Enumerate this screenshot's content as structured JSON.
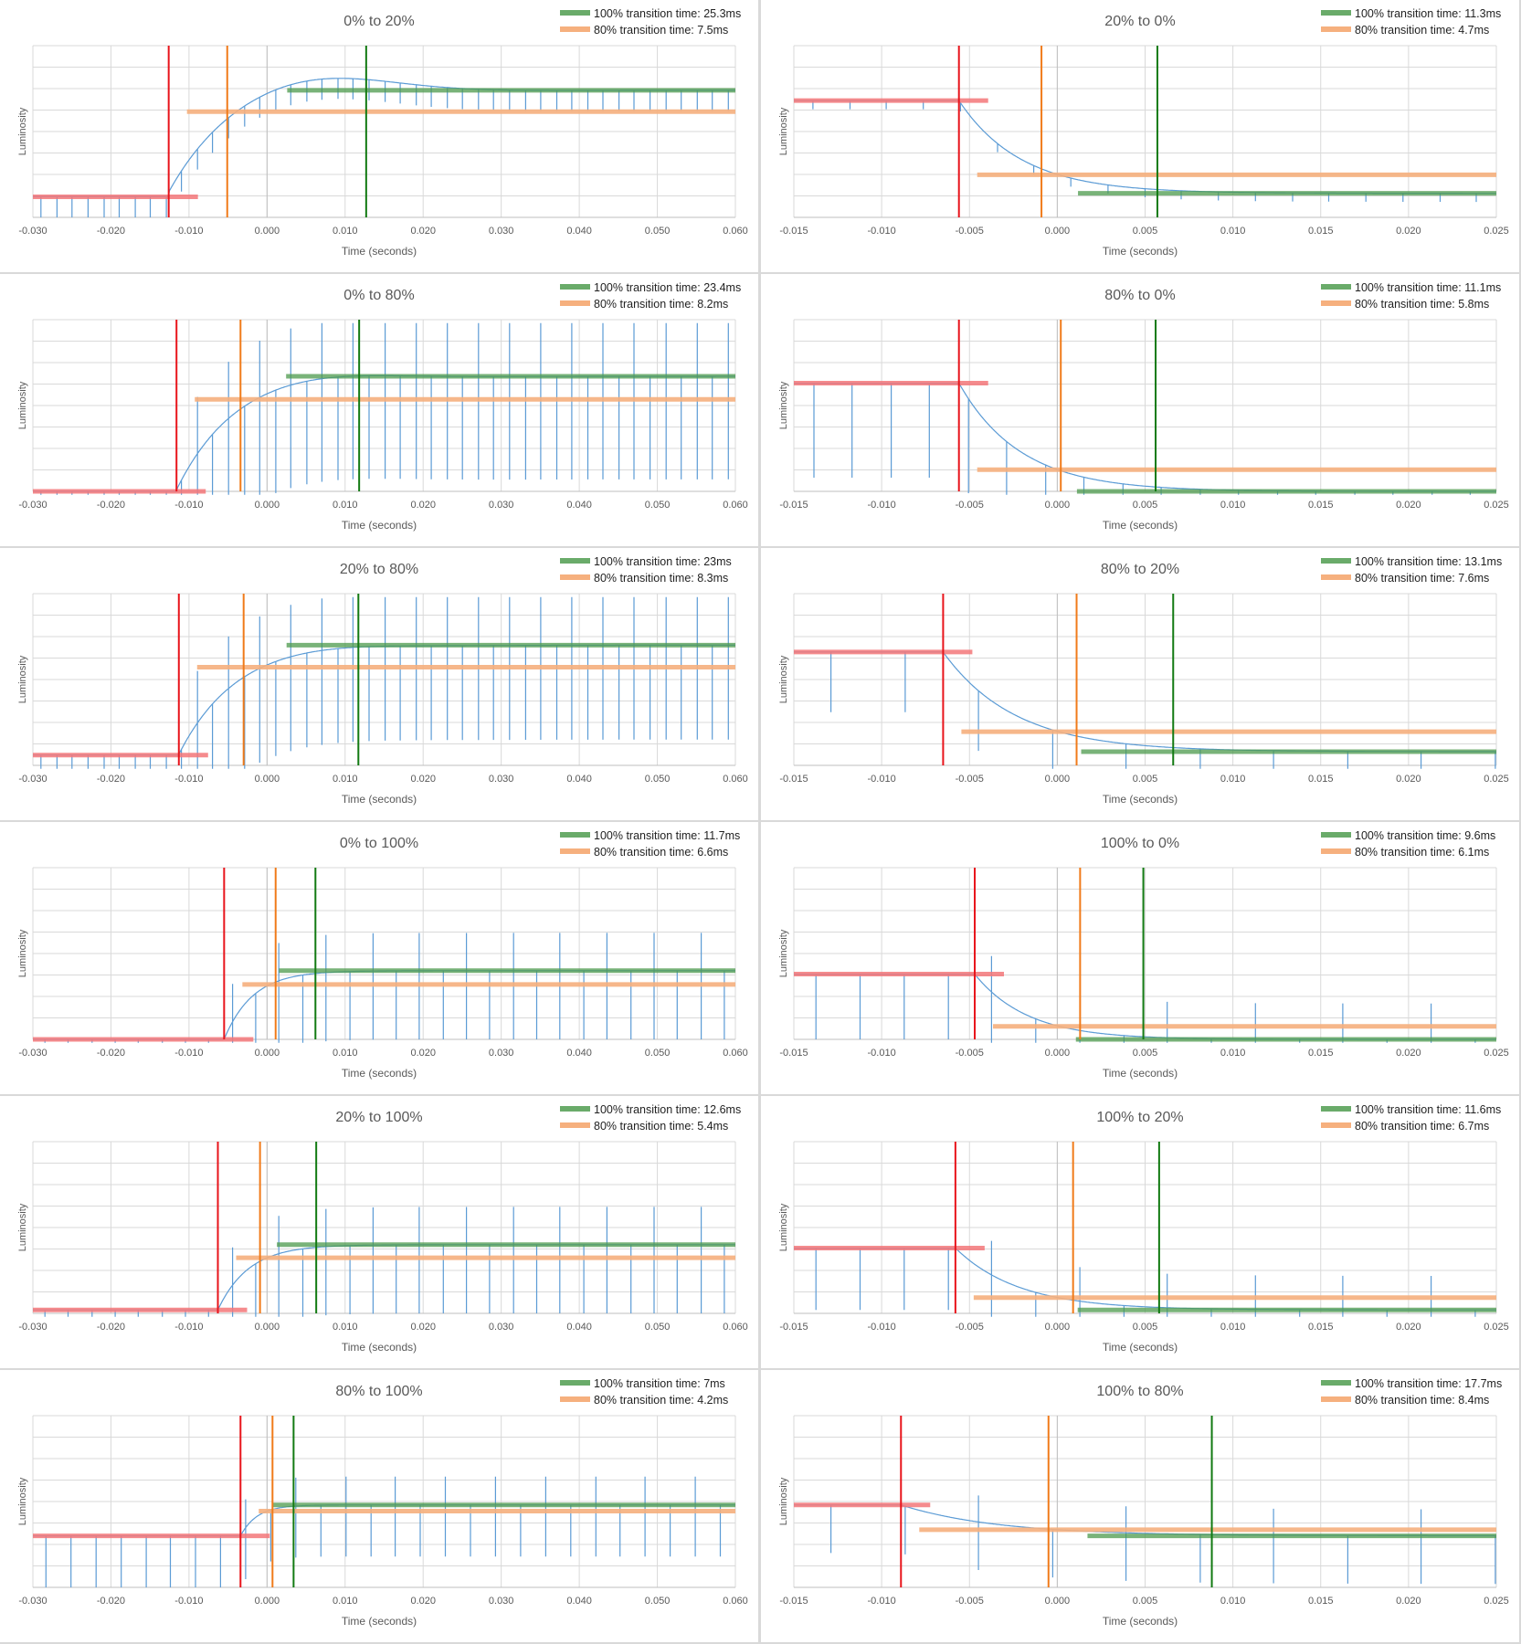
{
  "chart_data": [
    {
      "type": "line",
      "title": "0% to 20%",
      "xlabel": "Time (seconds)",
      "ylabel": "Luminosity",
      "xlim": [
        -0.03,
        0.06
      ],
      "xticks": [
        "-0.030",
        "-0.020",
        "-0.010",
        "0.000",
        "0.010",
        "0.020",
        "0.030",
        "0.040",
        "0.050",
        "0.060"
      ],
      "legend": [
        "100% transition time: 25.3ms",
        "80% transition time: 7.5ms"
      ],
      "direction": "rise",
      "t_start": -0.0126,
      "t_80": -0.0051,
      "t_100": 0.0127,
      "y0": 0.12,
      "y1": 0.74,
      "overshoot": 0.12,
      "spike_depth": 0.12,
      "spike_spacing": 0.002,
      "upspike": false
    },
    {
      "type": "line",
      "title": "20% to 0%",
      "xlabel": "Time (seconds)",
      "ylabel": "Luminosity",
      "xlim": [
        -0.015,
        0.025
      ],
      "xticks": [
        "-0.015",
        "-0.010",
        "-0.005",
        "0.000",
        "0.005",
        "0.010",
        "0.015",
        "0.020",
        "0.025"
      ],
      "legend": [
        "100% transition time: 11.3ms",
        "80% transition time: 4.7ms"
      ],
      "direction": "fall",
      "t_start": -0.0056,
      "t_80": -0.0009,
      "t_100": 0.0057,
      "y0": 0.68,
      "y1": 0.14,
      "overshoot": 0,
      "spike_depth": 0.05,
      "spike_spacing": 0.0021,
      "upspike": false
    },
    {
      "type": "line",
      "title": "0% to 80%",
      "xlabel": "Time (seconds)",
      "ylabel": "Luminosity",
      "xlim": [
        -0.03,
        0.06
      ],
      "xticks": [
        "-0.030",
        "-0.020",
        "-0.010",
        "0.000",
        "0.010",
        "0.020",
        "0.030",
        "0.040",
        "0.050",
        "0.060"
      ],
      "legend": [
        "100% transition time: 23.4ms",
        "80% transition time: 8.2ms"
      ],
      "direction": "rise",
      "t_start": -0.0116,
      "t_80": -0.0034,
      "t_100": 0.0118,
      "y0": 0.0,
      "y1": 0.67,
      "overshoot": 0.04,
      "spike_depth": 0.6,
      "spike_spacing": 0.002,
      "upspike": true
    },
    {
      "type": "line",
      "title": "80% to 0%",
      "xlabel": "Time (seconds)",
      "ylabel": "Luminosity",
      "xlim": [
        -0.015,
        0.025
      ],
      "xticks": [
        "-0.015",
        "-0.010",
        "-0.005",
        "0.000",
        "0.005",
        "0.010",
        "0.015",
        "0.020",
        "0.025"
      ],
      "legend": [
        "100% transition time: 11.1ms",
        "80% transition time: 5.8ms"
      ],
      "direction": "fall",
      "t_start": -0.0056,
      "t_80": 0.0002,
      "t_100": 0.0056,
      "y0": 0.63,
      "y1": 0.0,
      "overshoot": 0,
      "spike_depth": 0.55,
      "spike_spacing": 0.0022,
      "upspike": false
    },
    {
      "type": "line",
      "title": "20% to 80%",
      "xlabel": "Time (seconds)",
      "ylabel": "Luminosity",
      "xlim": [
        -0.03,
        0.06
      ],
      "xticks": [
        "-0.030",
        "-0.020",
        "-0.010",
        "0.000",
        "0.010",
        "0.020",
        "0.030",
        "0.040",
        "0.050",
        "0.060"
      ],
      "legend": [
        "100% transition time: 23ms",
        "80% transition time: 8.3ms"
      ],
      "direction": "rise",
      "t_start": -0.0113,
      "t_80": -0.003,
      "t_100": 0.0117,
      "y0": 0.06,
      "y1": 0.7,
      "overshoot": 0.02,
      "spike_depth": 0.55,
      "spike_spacing": 0.002,
      "upspike": true
    },
    {
      "type": "line",
      "title": "80% to 20%",
      "xlabel": "Time (seconds)",
      "ylabel": "Luminosity",
      "xlim": [
        -0.015,
        0.025
      ],
      "xticks": [
        "-0.015",
        "-0.010",
        "-0.005",
        "0.000",
        "0.005",
        "0.010",
        "0.015",
        "0.020",
        "0.025"
      ],
      "legend": [
        "100% transition time: 13.1ms",
        "80% transition time: 7.6ms"
      ],
      "direction": "fall",
      "t_start": -0.0065,
      "t_80": 0.0011,
      "t_100": 0.0066,
      "y0": 0.66,
      "y1": 0.08,
      "overshoot": 0,
      "spike_depth": 0.35,
      "spike_spacing": 0.0042,
      "upspike": false
    },
    {
      "type": "line",
      "title": "0% to 100%",
      "xlabel": "Time (seconds)",
      "ylabel": "Luminosity",
      "xlim": [
        -0.03,
        0.06
      ],
      "xticks": [
        "-0.030",
        "-0.020",
        "-0.010",
        "0.000",
        "0.010",
        "0.020",
        "0.030",
        "0.040",
        "0.050",
        "0.060"
      ],
      "legend": [
        "100% transition time: 11.7ms",
        "80% transition time: 6.6ms"
      ],
      "direction": "rise",
      "t_start": -0.0055,
      "t_80": 0.0011,
      "t_100": 0.0062,
      "y0": 0.0,
      "y1": 0.4,
      "overshoot": 0.0,
      "spike_depth": 0.4,
      "spike_spacing": 0.003,
      "upspike": true
    },
    {
      "type": "line",
      "title": "100% to 0%",
      "xlabel": "Time (seconds)",
      "ylabel": "Luminosity",
      "xlim": [
        -0.015,
        0.025
      ],
      "xticks": [
        "-0.015",
        "-0.010",
        "-0.005",
        "0.000",
        "0.005",
        "0.010",
        "0.015",
        "0.020",
        "0.025"
      ],
      "legend": [
        "100% transition time: 9.6ms",
        "80% transition time: 6.1ms"
      ],
      "direction": "fall",
      "t_start": -0.0047,
      "t_80": 0.0013,
      "t_100": 0.0049,
      "y0": 0.38,
      "y1": 0.0,
      "overshoot": 0,
      "spike_depth": 0.38,
      "spike_spacing": 0.0025,
      "upspike": true
    },
    {
      "type": "line",
      "title": "20% to 100%",
      "xlabel": "Time (seconds)",
      "ylabel": "Luminosity",
      "xlim": [
        -0.03,
        0.06
      ],
      "xticks": [
        "-0.030",
        "-0.020",
        "-0.010",
        "0.000",
        "0.010",
        "0.020",
        "0.030",
        "0.040",
        "0.050",
        "0.060"
      ],
      "legend": [
        "100% transition time: 12.6ms",
        "80% transition time: 5.4ms"
      ],
      "direction": "rise",
      "t_start": -0.0063,
      "t_80": -0.0009,
      "t_100": 0.0063,
      "y0": 0.02,
      "y1": 0.4,
      "overshoot": 0.0,
      "spike_depth": 0.4,
      "spike_spacing": 0.003,
      "upspike": true
    },
    {
      "type": "line",
      "title": "100% to 20%",
      "xlabel": "Time (seconds)",
      "ylabel": "Luminosity",
      "xlim": [
        -0.015,
        0.025
      ],
      "xticks": [
        "-0.015",
        "-0.010",
        "-0.005",
        "0.000",
        "0.005",
        "0.010",
        "0.015",
        "0.020",
        "0.025"
      ],
      "legend": [
        "100% transition time: 11.6ms",
        "80% transition time: 6.7ms"
      ],
      "direction": "fall",
      "t_start": -0.0058,
      "t_80": 0.0009,
      "t_100": 0.0058,
      "y0": 0.38,
      "y1": 0.02,
      "overshoot": 0,
      "spike_depth": 0.36,
      "spike_spacing": 0.0025,
      "upspike": true
    },
    {
      "type": "line",
      "title": "80% to 100%",
      "xlabel": "Time (seconds)",
      "ylabel": "Luminosity",
      "xlim": [
        -0.03,
        0.06
      ],
      "xticks": [
        "-0.030",
        "-0.020",
        "-0.010",
        "0.000",
        "0.010",
        "0.020",
        "0.030",
        "0.040",
        "0.050",
        "0.060"
      ],
      "legend": [
        "100% transition time: 7ms",
        "80% transition time: 4.2ms"
      ],
      "direction": "rise",
      "t_start": -0.0034,
      "t_80": 0.0007,
      "t_100": 0.0034,
      "y0": 0.3,
      "y1": 0.48,
      "overshoot": 0.0,
      "spike_depth": 0.3,
      "spike_spacing": 0.0032,
      "upspike": true
    },
    {
      "type": "line",
      "title": "100% to 80%",
      "xlabel": "Time (seconds)",
      "ylabel": "Luminosity",
      "xlim": [
        -0.015,
        0.025
      ],
      "xticks": [
        "-0.015",
        "-0.010",
        "-0.005",
        "0.000",
        "0.005",
        "0.010",
        "0.015",
        "0.020",
        "0.025"
      ],
      "legend": [
        "100% transition time: 17.7ms",
        "80% transition time: 8.4ms"
      ],
      "direction": "fall",
      "t_start": -0.0089,
      "t_80": -0.0005,
      "t_100": 0.0088,
      "y0": 0.48,
      "y1": 0.3,
      "overshoot": 0,
      "spike_depth": 0.28,
      "spike_spacing": 0.0042,
      "upspike": true
    }
  ]
}
